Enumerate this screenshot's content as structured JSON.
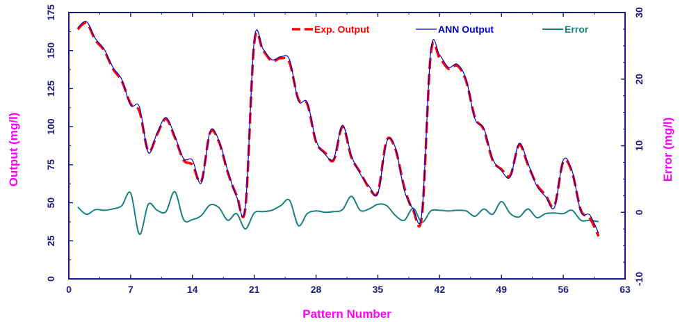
{
  "chart_data": {
    "type": "line",
    "xlabel": "Pattern Number",
    "ylabel": "Output (mg/l)",
    "y2label": "Error (mg/l)",
    "xlim": [
      0,
      63
    ],
    "ylim": [
      0,
      175
    ],
    "y2lim": [
      -10,
      30
    ],
    "x_ticks": [
      "0",
      "7",
      "14",
      "21",
      "28",
      "35",
      "42",
      "49",
      "56",
      "63"
    ],
    "y_ticks": [
      "0",
      "25",
      "50",
      "75",
      "100",
      "125",
      "150",
      "175"
    ],
    "y2_ticks": [
      "-10",
      "0",
      "10",
      "20",
      "30"
    ],
    "grid": false,
    "legend_position": "top-right",
    "x": [
      1,
      2,
      3,
      4,
      5,
      6,
      7,
      8,
      9,
      10,
      11,
      12,
      13,
      14,
      15,
      16,
      17,
      18,
      19,
      20,
      21,
      22,
      23,
      24,
      25,
      26,
      27,
      28,
      29,
      30,
      31,
      32,
      33,
      34,
      35,
      36,
      37,
      38,
      39,
      40,
      41,
      42,
      43,
      44,
      45,
      46,
      47,
      48,
      49,
      50,
      51,
      52,
      53,
      54,
      55,
      56,
      57,
      58,
      59,
      60
    ],
    "series": [
      {
        "name": "Exp. Output",
        "axis": "left",
        "color": "#ff0000",
        "style": "dashed",
        "values": [
          164,
          168,
          157,
          150,
          138,
          130,
          115,
          110,
          84,
          95,
          105,
          93,
          78,
          75,
          64,
          96,
          90,
          70,
          55,
          47,
          155,
          150,
          143,
          145,
          142,
          118,
          115,
          90,
          83,
          78,
          100,
          80,
          70,
          60,
          57,
          91,
          85,
          60,
          45,
          42,
          148,
          145,
          138,
          140,
          130,
          106,
          98,
          78,
          72,
          68,
          88,
          75,
          62,
          55,
          48,
          77,
          70,
          45,
          40,
          28
        ]
      },
      {
        "name": "ANN Output",
        "axis": "left",
        "color": "#0000cc",
        "style": "solid",
        "values": [
          165,
          169,
          158,
          151,
          139,
          131,
          114,
          113,
          83,
          96,
          106,
          94,
          79,
          78,
          63,
          97,
          91,
          71,
          54,
          48,
          157,
          151,
          144,
          146,
          144,
          117,
          116,
          91,
          82,
          79,
          101,
          81,
          69,
          61,
          56,
          90,
          86,
          58,
          46,
          44,
          150,
          147,
          139,
          141,
          131,
          105,
          99,
          79,
          71,
          67,
          89,
          76,
          61,
          54,
          47,
          78,
          71,
          44,
          42,
          30
        ]
      },
      {
        "name": "Error",
        "axis": "right",
        "color": "#1a8080",
        "style": "solid",
        "values": [
          0.8,
          -0.3,
          0.4,
          0.3,
          0.5,
          1.0,
          2.9,
          -3.3,
          1.2,
          0.3,
          0.1,
          3.1,
          -1.1,
          -1.1,
          -0.5,
          1.1,
          0.7,
          -1.2,
          -0.2,
          -2.5,
          -0.1,
          0.1,
          0.3,
          1.0,
          1.8,
          -2.0,
          -0.2,
          0.2,
          0.0,
          0.1,
          0.4,
          2.4,
          0.3,
          0.5,
          1.2,
          1.0,
          -0.5,
          -1.2,
          0.6,
          -1.5,
          0.2,
          0.3,
          0.2,
          0.3,
          0.2,
          -0.6,
          0.5,
          -0.3,
          1.6,
          -0.2,
          -0.7,
          0.5,
          -0.8,
          -0.2,
          -0.1,
          -0.2,
          0.3,
          -1.2,
          -1.2,
          -1.4
        ]
      }
    ]
  }
}
